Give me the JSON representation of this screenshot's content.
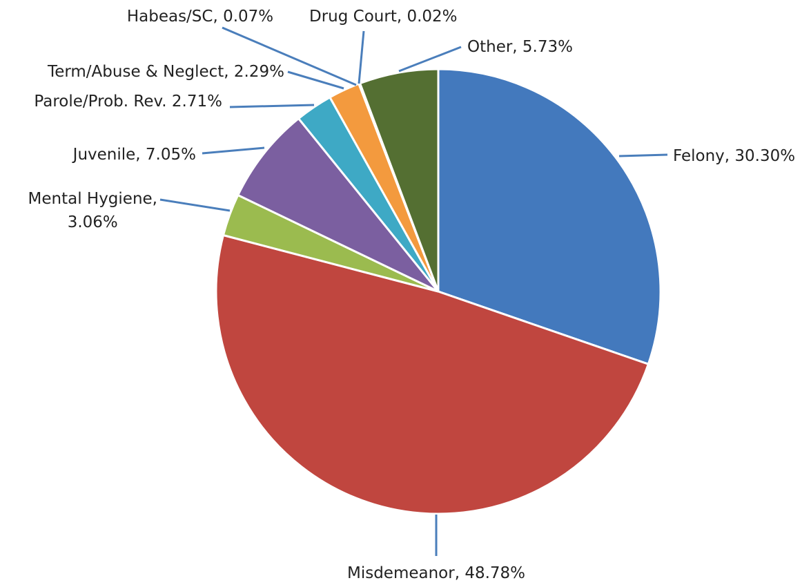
{
  "chart_data": {
    "type": "pie",
    "values": [
      30.3,
      48.78,
      3.06,
      7.05,
      2.71,
      2.29,
      0.07,
      0.02,
      5.73
    ],
    "value_labels": [
      "Felony, 30.30%",
      "Misdemeanor, 48.78%",
      "Mental Hygiene,\n3.06%",
      "Juvenile, 7.05%",
      "Parole/Prob. Rev. 2.71%",
      "Term/Abuse & Neglect, 2.29%",
      "Habeas/SC, 0.07%",
      "Drug Court, 0.02%",
      "Other, 5.73%"
    ],
    "colors": [
      "#4379bd",
      "#c0463f",
      "#9bbb4f",
      "#7b5fa0",
      "#3ea9c5",
      "#f39a3e",
      "#2f5f91",
      "#9e480e",
      "#546f32"
    ]
  }
}
